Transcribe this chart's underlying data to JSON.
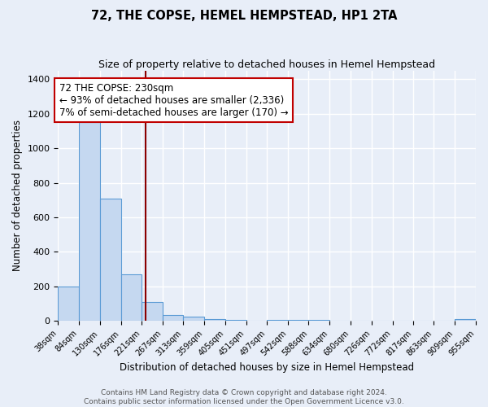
{
  "title": "72, THE COPSE, HEMEL HEMPSTEAD, HP1 2TA",
  "subtitle": "Size of property relative to detached houses in Hemel Hempstead",
  "xlabel": "Distribution of detached houses by size in Hemel Hempstead",
  "ylabel": "Number of detached properties",
  "bar_edges": [
    38,
    84,
    130,
    176,
    221,
    267,
    313,
    359,
    405,
    451,
    497,
    542,
    588,
    634,
    680,
    726,
    772,
    817,
    863,
    909,
    955
  ],
  "bar_heights": [
    200,
    1150,
    710,
    270,
    110,
    35,
    25,
    10,
    5,
    0,
    5,
    5,
    5,
    0,
    0,
    0,
    0,
    0,
    0,
    10
  ],
  "bar_color": "#c5d8f0",
  "bar_edge_color": "#5b9bd5",
  "bar_linewidth": 0.8,
  "vline_x": 230,
  "vline_color": "#8b0000",
  "vline_linewidth": 1.5,
  "annotation_title": "72 THE COPSE: 230sqm",
  "annotation_line1": "← 93% of detached houses are smaller (2,336)",
  "annotation_line2": "7% of semi-detached houses are larger (170) →",
  "annotation_fontsize": 8.5,
  "annotation_box_color": "white",
  "annotation_box_edgecolor": "#c00000",
  "ylim": [
    0,
    1450
  ],
  "yticks": [
    0,
    200,
    400,
    600,
    800,
    1000,
    1200,
    1400
  ],
  "background_color": "#e8eef8",
  "plot_bg_color": "#e8eef8",
  "grid_color": "#ffffff",
  "title_fontsize": 10.5,
  "subtitle_fontsize": 9,
  "xlabel_fontsize": 8.5,
  "ylabel_fontsize": 8.5,
  "tick_fontsize": 7,
  "ytick_fontsize": 8,
  "footer_line1": "Contains HM Land Registry data © Crown copyright and database right 2024.",
  "footer_line2": "Contains public sector information licensed under the Open Government Licence v3.0.",
  "footer_fontsize": 6.5
}
